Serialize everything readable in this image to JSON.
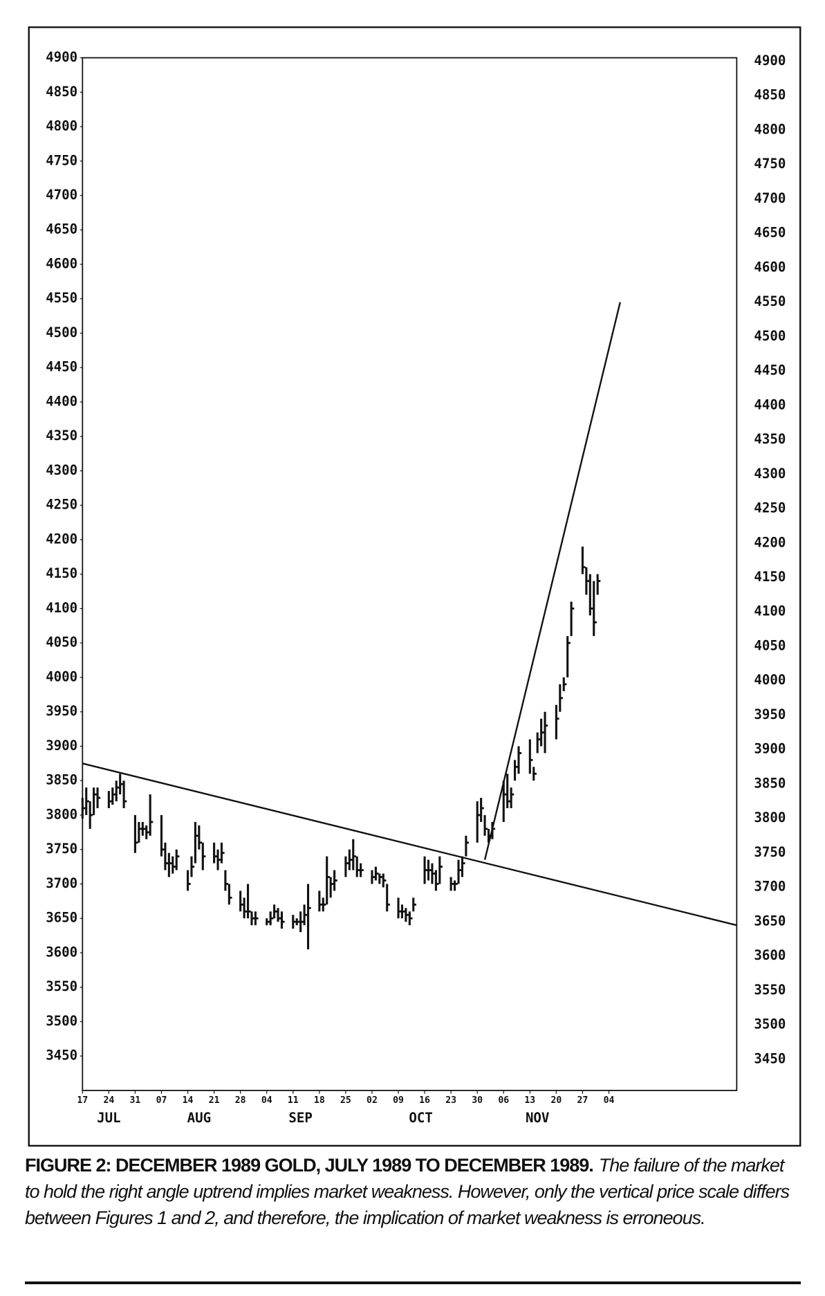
{
  "chart_data": {
    "type": "ohlc",
    "x": [
      0,
      1,
      2,
      3,
      4,
      7,
      8,
      9,
      10,
      11,
      14,
      15,
      16,
      17,
      18,
      21,
      22,
      23,
      24,
      25,
      28,
      29,
      30,
      31,
      32,
      35,
      36,
      37,
      38,
      39,
      42,
      43,
      44,
      45,
      46,
      49,
      50,
      51,
      52,
      53,
      56,
      57,
      58,
      59,
      60,
      63,
      64,
      65,
      66,
      67,
      70,
      71,
      72,
      73,
      74,
      77,
      78,
      79,
      80,
      81,
      84,
      85,
      86,
      87,
      88,
      91,
      92,
      93,
      94,
      95,
      98,
      99,
      100,
      101,
      102,
      105,
      106,
      107,
      108,
      109,
      112,
      113,
      114,
      115,
      116,
      119,
      120,
      121,
      122,
      123,
      126,
      127,
      128,
      129,
      130,
      133,
      134,
      135,
      136,
      137
    ],
    "high": [
      3825,
      3840,
      3820,
      3840,
      3840,
      3835,
      3840,
      3850,
      3860,
      3850,
      3800,
      3790,
      3790,
      3785,
      3830,
      3800,
      3760,
      3745,
      3740,
      3750,
      3720,
      3740,
      3790,
      3785,
      3760,
      3760,
      3750,
      3760,
      3720,
      3700,
      3690,
      3680,
      3700,
      3660,
      3660,
      3650,
      3660,
      3670,
      3665,
      3660,
      3655,
      3650,
      3660,
      3670,
      3700,
      3690,
      3680,
      3740,
      3710,
      3720,
      3740,
      3750,
      3765,
      3740,
      3730,
      3720,
      3725,
      3715,
      3715,
      3700,
      3680,
      3670,
      3665,
      3660,
      3680,
      3740,
      3735,
      3730,
      3720,
      3740,
      3710,
      3705,
      3735,
      3740,
      3770,
      3820,
      3825,
      3800,
      3780,
      3790,
      3850,
      3860,
      3840,
      3880,
      3900,
      3910,
      3870,
      3920,
      3940,
      3950,
      3960,
      3990,
      4000,
      4060,
      4110,
      4190,
      4160,
      4150,
      4140,
      4150
    ],
    "low": [
      3795,
      3800,
      3780,
      3800,
      3810,
      3810,
      3815,
      3820,
      3830,
      3810,
      3745,
      3760,
      3770,
      3765,
      3770,
      3740,
      3720,
      3710,
      3715,
      3720,
      3690,
      3710,
      3730,
      3750,
      3720,
      3730,
      3720,
      3730,
      3690,
      3670,
      3660,
      3650,
      3650,
      3640,
      3640,
      3640,
      3640,
      3650,
      3645,
      3635,
      3635,
      3640,
      3630,
      3640,
      3605,
      3660,
      3660,
      3670,
      3680,
      3690,
      3710,
      3720,
      3720,
      3710,
      3710,
      3700,
      3705,
      3700,
      3695,
      3660,
      3650,
      3650,
      3645,
      3640,
      3660,
      3700,
      3705,
      3700,
      3690,
      3700,
      3690,
      3690,
      3700,
      3710,
      3740,
      3760,
      3790,
      3770,
      3760,
      3765,
      3790,
      3810,
      3810,
      3850,
      3860,
      3860,
      3850,
      3890,
      3900,
      3890,
      3910,
      3950,
      3980,
      4000,
      4060,
      4150,
      4120,
      4090,
      4060,
      4120
    ],
    "close": [
      3810,
      3820,
      3800,
      3830,
      3825,
      3820,
      3830,
      3840,
      3845,
      3820,
      3760,
      3780,
      3780,
      3775,
      3790,
      3750,
      3730,
      3730,
      3725,
      3740,
      3700,
      3725,
      3770,
      3760,
      3740,
      3740,
      3735,
      3745,
      3700,
      3680,
      3670,
      3660,
      3660,
      3650,
      3650,
      3645,
      3650,
      3660,
      3650,
      3645,
      3645,
      3645,
      3645,
      3655,
      3665,
      3670,
      3670,
      3710,
      3700,
      3705,
      3730,
      3735,
      3740,
      3720,
      3720,
      3710,
      3715,
      3710,
      3705,
      3670,
      3660,
      3660,
      3655,
      3650,
      3670,
      3720,
      3720,
      3715,
      3700,
      3725,
      3700,
      3700,
      3720,
      3730,
      3760,
      3800,
      3810,
      3780,
      3770,
      3780,
      3830,
      3820,
      3830,
      3870,
      3890,
      3880,
      3860,
      3910,
      3920,
      3930,
      3940,
      3970,
      3990,
      4050,
      4100,
      4160,
      4140,
      4100,
      4080,
      4140
    ],
    "color": "#111111",
    "xlim": [
      0,
      174
    ],
    "xticks": [
      {
        "value": 0,
        "label": "17"
      },
      {
        "value": 7,
        "label": "24"
      },
      {
        "value": 14,
        "label": "31"
      },
      {
        "value": 21,
        "label": "07"
      },
      {
        "value": 28,
        "label": "14"
      },
      {
        "value": 35,
        "label": "21"
      },
      {
        "value": 42,
        "label": "28"
      },
      {
        "value": 49,
        "label": "04"
      },
      {
        "value": 56,
        "label": "11"
      },
      {
        "value": 63,
        "label": "18"
      },
      {
        "value": 70,
        "label": "25"
      },
      {
        "value": 77,
        "label": "02"
      },
      {
        "value": 84,
        "label": "09"
      },
      {
        "value": 91,
        "label": "16"
      },
      {
        "value": 98,
        "label": "23"
      },
      {
        "value": 105,
        "label": "30"
      },
      {
        "value": 112,
        "label": "06"
      },
      {
        "value": 119,
        "label": "13"
      },
      {
        "value": 126,
        "label": "20"
      },
      {
        "value": 133,
        "label": "27"
      },
      {
        "value": 140,
        "label": "04"
      }
    ],
    "month_labels": [
      {
        "value": 7,
        "label": "JUL"
      },
      {
        "value": 31,
        "label": "AUG"
      },
      {
        "value": 58,
        "label": "SEP"
      },
      {
        "value": 90,
        "label": "OCT"
      },
      {
        "value": 121,
        "label": "NOV"
      }
    ],
    "ylim": [
      3400,
      4900
    ],
    "yticks": [
      3450,
      3500,
      3550,
      3600,
      3650,
      3700,
      3750,
      3800,
      3850,
      3900,
      3950,
      4000,
      4050,
      4100,
      4150,
      4200,
      4250,
      4300,
      4350,
      4400,
      4450,
      4500,
      4550,
      4600,
      4650,
      4700,
      4750,
      4800,
      4850,
      4900
    ],
    "trend_lines": [
      {
        "x": [
          0,
          174
        ],
        "y": [
          3875,
          3640
        ]
      },
      {
        "x": [
          107,
          143
        ],
        "y": [
          3735,
          4545
        ]
      }
    ]
  },
  "caption": {
    "label": "FIGURE 2: DECEMBER 1989 GOLD, JULY 1989 TO DECEMBER 1989.",
    "text": "The failure of the market to hold the right angle uptrend implies market weakness. However, only the vertical price scale differs between Figures 1 and  2, and therefore, the implication of market weakness is erroneous."
  }
}
